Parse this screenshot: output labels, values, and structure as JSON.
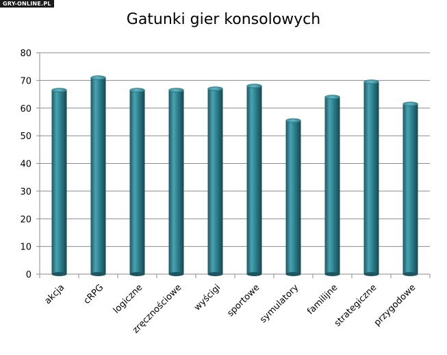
{
  "watermark": "GRY-ONLINE.PL",
  "chart_data": {
    "type": "bar",
    "title": "Gatunki gier konsolowych",
    "categories": [
      "akcja",
      "cRPG",
      "logiczne",
      "zręcznościowe",
      "wyścigi",
      "sportowe",
      "symulatory",
      "familijne",
      "strategiczne",
      "przygodowe"
    ],
    "values": [
      66.5,
      71,
      66.5,
      66.5,
      67,
      68,
      55.5,
      64,
      69.5,
      61.5
    ],
    "ylim": [
      0,
      80
    ],
    "yticks": [
      0,
      10,
      20,
      30,
      40,
      50,
      60,
      70,
      80
    ],
    "grid": true,
    "bar_color": "#2f7f8c"
  }
}
